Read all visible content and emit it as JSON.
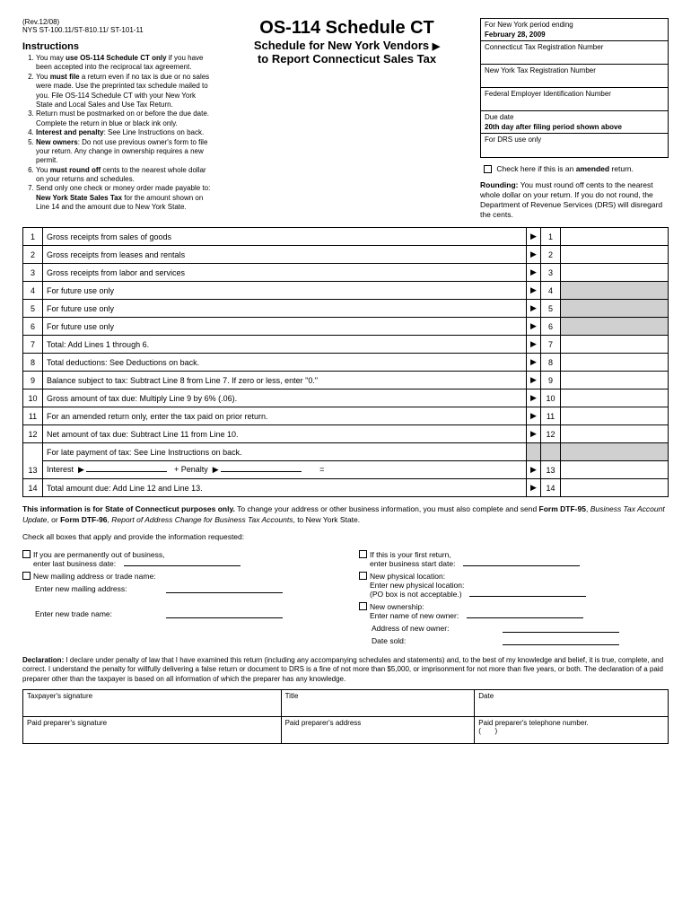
{
  "rev": "(Rev.12/08)",
  "nys": "NYS ST-100.11/ST-810.11/ ST-101-11",
  "title": "OS-114 Schedule CT",
  "subtitle1": "Schedule for New York Vendors",
  "subtitle2": "to Report Connecticut Sales Tax",
  "instructions_label": "Instructions",
  "instructions": [
    "You may <b>use OS-114 Schedule CT only</b> if you have been accepted into the reciprocal tax agreement.",
    "You <b>must file</b> a return even if no tax is due or no sales were made. Use the preprinted tax schedule mailed to you. File OS-114 Schedule CT with your New York State and Local Sales and Use Tax Return.",
    "Return must be postmarked on or before the due date. Complete the return in blue or black ink only.",
    "<b>Interest and penalty</b>: See Line Instructions on back.",
    "<b>New owners</b>: Do not use previous owner's form to file your return. Any change in ownership requires a new permit.",
    "You <b>must round off</b> cents to the nearest whole dollar on your returns and schedules.",
    "Send only one check or money order made payable to: <b>New York State Sales Tax</b> for the amount shown on Line 14 and the amount due to New York State."
  ],
  "info_cells": [
    {
      "label": "For New York period ending",
      "value": "February 28, 2009"
    },
    {
      "label": "Connecticut Tax Registration Number",
      "value": ""
    },
    {
      "label": "New York Tax Registration Number",
      "value": ""
    },
    {
      "label": "Federal Employer Identification Number",
      "value": ""
    },
    {
      "label": "Due date",
      "value": "20th day after filing period shown above"
    },
    {
      "label": "For DRS use only",
      "value": ""
    }
  ],
  "amended": "Check here if this is an <b>amended</b> return.",
  "rounding": "<b>Rounding:</b> You must round off cents to the nearest whole dollar on your return. If you do not round, the Department of Revenue Services (DRS) will disregard the cents.",
  "lines": [
    {
      "n": "1",
      "d": "Gross receipts from sales of goods",
      "shade": false
    },
    {
      "n": "2",
      "d": "Gross receipts from leases and rentals",
      "shade": false
    },
    {
      "n": "3",
      "d": "Gross receipts from labor and services",
      "shade": false
    },
    {
      "n": "4",
      "d": "For future use only",
      "shade": true
    },
    {
      "n": "5",
      "d": "For future use only",
      "shade": true
    },
    {
      "n": "6",
      "d": "For future use only",
      "shade": true
    },
    {
      "n": "7",
      "d": "Total: Add Lines 1 through 6.",
      "shade": false
    },
    {
      "n": "8",
      "d": "Total deductions: See Deductions on back.",
      "shade": false
    },
    {
      "n": "9",
      "d": "Balance subject to tax: Subtract Line 8 from Line 7. If zero or less, enter \"0.\"",
      "shade": false
    },
    {
      "n": "10",
      "d": "Gross amount of tax due: Multiply Line 9 by 6% (.06).",
      "shade": false
    },
    {
      "n": "11",
      "d": "For an amended return only, enter the tax paid on prior return.",
      "shade": false
    },
    {
      "n": "12",
      "d": "Net amount of tax due: Subtract Line 11 from Line 10.",
      "shade": false
    }
  ],
  "late_line": "For late payment of tax: See Line Instructions on back.",
  "line13_label": "Interest",
  "line13_plus": "+ Penalty",
  "line13_eq": "=",
  "line14": "Total amount due: Add Line 12 and Line 13.",
  "info_text": "<b>This information is for State of Connecticut purposes only.</b> To change your address or other business information, you must also complete and send <b>Form DTF-95</b>, <i>Business Tax Account Update</i>, or <b>Form DTF-96</b>, <i>Report of Address Change for Business Tax Accounts</i>, to New York State.",
  "check_intro": "Check all boxes that apply and provide the information requested:",
  "left_checks": [
    {
      "main": "If you are permanently out of business,",
      "sub": "enter last business date:"
    },
    {
      "main": "New mailing address or trade name:",
      "sub": ""
    }
  ],
  "left_labels": [
    "Enter new mailing address:",
    "",
    "Enter new trade name:"
  ],
  "right_checks": [
    {
      "main": "If this is your first return,",
      "sub": "enter business start date:"
    },
    {
      "main": "New physical location:",
      "sub": "Enter new physical location:<br>(PO box is not acceptable.)"
    },
    {
      "main": "New ownership:",
      "sub": "Enter name of new owner:"
    }
  ],
  "right_labels": [
    "Address of new owner:",
    "Date sold:"
  ],
  "declaration": "<b>Declaration:</b> I declare under penalty of law that I have examined this return (including any accompanying schedules and statements) and, to the best of my knowledge and belief, it is true, complete, and correct. I understand the penalty for willfully delivering a false return or document to DRS is a fine of not more than $5,000, or imprisonment for not more than five years, or both. The declaration of a paid preparer other than the taxpayer is based on all information of which the preparer has any knowledge.",
  "sig_row1": [
    "Taxpayer's signature",
    "Title",
    "Date"
  ],
  "sig_row2": [
    "Paid preparer's signature",
    "Paid preparer's address",
    "Paid preparer's telephone number.<br>(&nbsp;&nbsp;&nbsp;&nbsp;&nbsp;&nbsp;&nbsp;)"
  ]
}
